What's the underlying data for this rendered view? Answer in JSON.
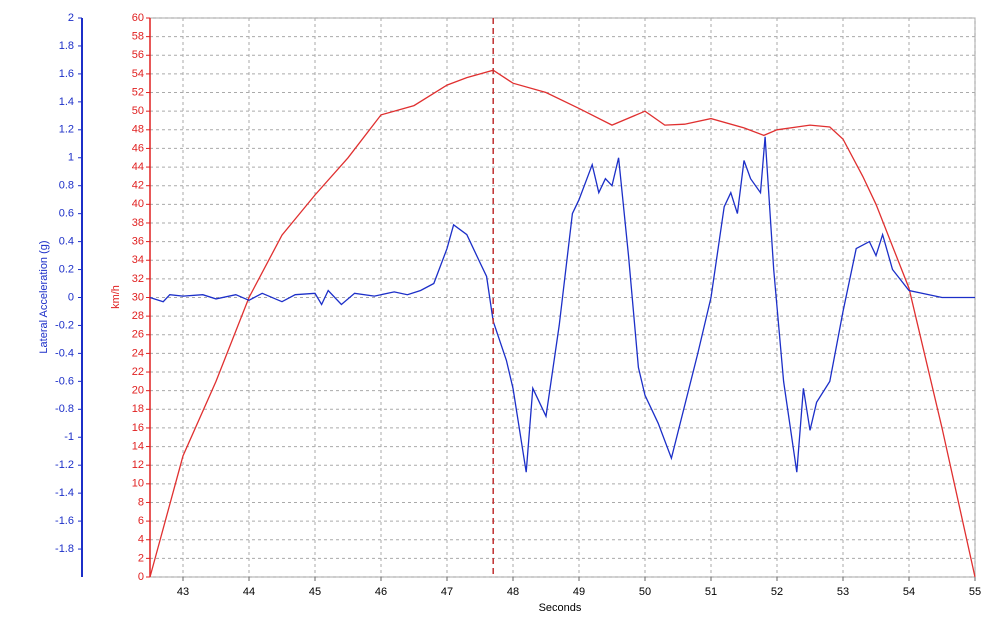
{
  "chart_data": {
    "type": "line",
    "xlabel": "Seconds",
    "ylabel": "km/h",
    "y2label": "Lateral Acceleration (g)",
    "xlim": [
      42.5,
      55
    ],
    "xticks": [
      43,
      44,
      45,
      46,
      47,
      48,
      49,
      50,
      51,
      52,
      53,
      54,
      55
    ],
    "ylim": [
      0,
      60
    ],
    "yticks": [
      0,
      2,
      4,
      6,
      8,
      10,
      12,
      14,
      16,
      18,
      20,
      22,
      24,
      26,
      28,
      30,
      32,
      34,
      36,
      38,
      40,
      42,
      44,
      46,
      48,
      50,
      52,
      54,
      56,
      58,
      60
    ],
    "y2lim": [
      -2,
      2
    ],
    "y2ticks": [
      -1.8,
      -1.6,
      -1.4,
      -1.2,
      -1,
      -0.8,
      -0.6,
      -0.4,
      -0.2,
      0,
      0.2,
      0.4,
      0.6,
      0.8,
      1,
      1.2,
      1.4,
      1.6,
      1.8,
      2
    ],
    "grid": true,
    "cursor_x": 47.7,
    "cursor_color": "#c03030",
    "y_color": "#e02020",
    "y2_color": "#1c2fc8",
    "series": [
      {
        "color": "#e03030",
        "x": [
          42.5,
          43,
          43.5,
          44,
          44.5,
          45,
          45.5,
          46,
          46.5,
          47,
          47.3,
          47.7,
          48,
          48.5,
          49,
          49.5,
          50,
          50.3,
          50.6,
          51,
          51.5,
          51.8,
          52,
          52.5,
          52.8,
          53,
          53.3,
          53.5,
          54,
          54.5,
          55
        ],
        "values": [
          0,
          13,
          21,
          30,
          36.7,
          41,
          45,
          49.6,
          50.6,
          52.8,
          53.6,
          54.4,
          53,
          52,
          50.3,
          48.5,
          50,
          48.5,
          48.6,
          49.2,
          48.2,
          47.4,
          48,
          48.5,
          48.3,
          47,
          43,
          40,
          31,
          16,
          0
        ]
      },
      {
        "color": "#1c2fc8",
        "axis": "y2",
        "x": [
          42.5,
          42.7,
          42.8,
          43,
          43.3,
          43.5,
          43.8,
          44,
          44.2,
          44.5,
          44.7,
          45,
          45.1,
          45.2,
          45.4,
          45.6,
          45.9,
          46.2,
          46.4,
          46.6,
          46.8,
          47,
          47.1,
          47.3,
          47.5,
          47.6,
          47.7,
          47.9,
          48,
          48.2,
          48.3,
          48.5,
          48.7,
          48.9,
          49,
          49.2,
          49.3,
          49.4,
          49.5,
          49.6,
          49.75,
          49.9,
          50,
          50.2,
          50.4,
          50.8,
          51,
          51.2,
          51.3,
          51.4,
          51.5,
          51.6,
          51.75,
          51.82,
          51.95,
          52.1,
          52.3,
          52.4,
          52.5,
          52.6,
          52.8,
          53,
          53.2,
          53.4,
          53.5,
          53.6,
          53.75,
          54,
          54.5,
          55
        ],
        "values": [
          0,
          -0.03,
          0.02,
          0.01,
          0.02,
          -0.01,
          0.02,
          -0.02,
          0.03,
          -0.03,
          0.02,
          0.03,
          -0.05,
          0.05,
          -0.05,
          0.03,
          0.01,
          0.04,
          0.02,
          0.05,
          0.1,
          0.35,
          0.52,
          0.45,
          0.25,
          0.15,
          -0.17,
          -0.45,
          -0.65,
          -1.25,
          -0.65,
          -0.85,
          -0.2,
          0.6,
          0.7,
          0.95,
          0.75,
          0.85,
          0.8,
          1.0,
          0.3,
          -0.5,
          -0.7,
          -0.9,
          -1.15,
          -0.4,
          0,
          0.65,
          0.75,
          0.6,
          0.98,
          0.85,
          0.75,
          1.15,
          0.2,
          -0.6,
          -1.25,
          -0.65,
          -0.95,
          -0.75,
          -0.6,
          -0.1,
          0.35,
          0.4,
          0.3,
          0.45,
          0.2,
          0.05,
          0,
          0
        ]
      }
    ]
  }
}
